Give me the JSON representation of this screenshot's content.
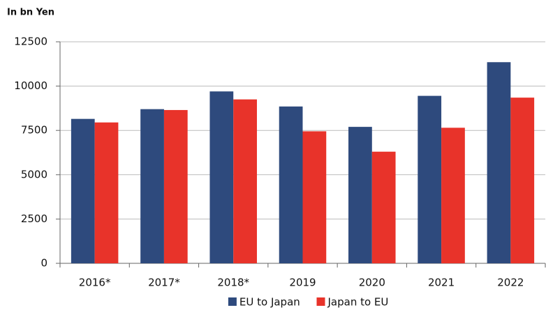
{
  "chart_data": {
    "type": "bar",
    "title": "In bn Yen",
    "categories": [
      "2016*",
      "2017*",
      "2018*",
      "2019",
      "2020",
      "2021",
      "2022"
    ],
    "series": [
      {
        "name": "EU to Japan",
        "color": "#2e4a7d",
        "values": [
          8150,
          8700,
          9700,
          8850,
          7700,
          9450,
          11350
        ]
      },
      {
        "name": "Japan to EU",
        "color": "#e8332a",
        "values": [
          7950,
          8650,
          9250,
          7450,
          6300,
          7650,
          9350
        ]
      }
    ],
    "ylim": [
      0,
      12500
    ],
    "yticks": [
      0,
      2500,
      5000,
      7500,
      10000,
      12500
    ],
    "grid": true,
    "legend": "bottom"
  }
}
